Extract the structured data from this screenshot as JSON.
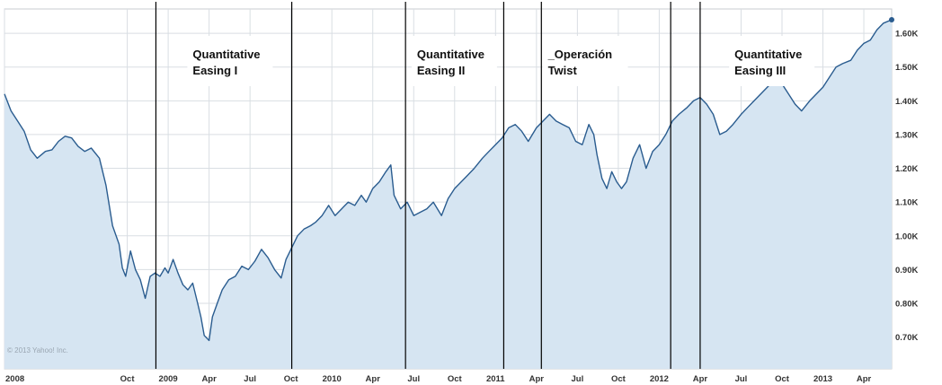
{
  "chart_data": {
    "type": "area",
    "y_ticks": [
      "0.70K",
      "0.80K",
      "0.90K",
      "1.00K",
      "1.10K",
      "1.20K",
      "1.30K",
      "1.40K",
      "1.50K",
      "1.60K"
    ],
    "y_tick_values": [
      700,
      800,
      900,
      1000,
      1100,
      1200,
      1300,
      1400,
      1500,
      1600
    ],
    "ylim": [
      606,
      1672
    ],
    "x_range": [
      2008.0,
      2013.42
    ],
    "x_ticks": [
      {
        "label": "2008",
        "t": 2008.0
      },
      {
        "label": "Oct",
        "t": 2008.75
      },
      {
        "label": "2009",
        "t": 2009.0
      },
      {
        "label": "Apr",
        "t": 2009.25
      },
      {
        "label": "Jul",
        "t": 2009.5
      },
      {
        "label": "Oct",
        "t": 2009.75
      },
      {
        "label": "2010",
        "t": 2010.0
      },
      {
        "label": "Apr",
        "t": 2010.25
      },
      {
        "label": "Jul",
        "t": 2010.5
      },
      {
        "label": "Oct",
        "t": 2010.75
      },
      {
        "label": "2011",
        "t": 2011.0
      },
      {
        "label": "Apr",
        "t": 2011.25
      },
      {
        "label": "Jul",
        "t": 2011.5
      },
      {
        "label": "Oct",
        "t": 2011.75
      },
      {
        "label": "2012",
        "t": 2012.0
      },
      {
        "label": "Apr",
        "t": 2012.25
      },
      {
        "label": "Jul",
        "t": 2012.5
      },
      {
        "label": "Oct",
        "t": 2012.75
      },
      {
        "label": "2013",
        "t": 2013.0
      },
      {
        "label": "Apr",
        "t": 2013.25
      }
    ],
    "series": [
      {
        "values": [
          [
            2008.0,
            1420
          ],
          [
            2008.04,
            1370
          ],
          [
            2008.08,
            1340
          ],
          [
            2008.12,
            1310
          ],
          [
            2008.16,
            1255
          ],
          [
            2008.2,
            1230
          ],
          [
            2008.25,
            1250
          ],
          [
            2008.29,
            1255
          ],
          [
            2008.33,
            1280
          ],
          [
            2008.37,
            1295
          ],
          [
            2008.41,
            1290
          ],
          [
            2008.45,
            1265
          ],
          [
            2008.49,
            1250
          ],
          [
            2008.53,
            1260
          ],
          [
            2008.58,
            1230
          ],
          [
            2008.62,
            1150
          ],
          [
            2008.66,
            1030
          ],
          [
            2008.7,
            975
          ],
          [
            2008.72,
            905
          ],
          [
            2008.74,
            880
          ],
          [
            2008.77,
            955
          ],
          [
            2008.8,
            900
          ],
          [
            2008.83,
            870
          ],
          [
            2008.86,
            815
          ],
          [
            2008.89,
            880
          ],
          [
            2008.92,
            890
          ],
          [
            2008.95,
            880
          ],
          [
            2008.98,
            905
          ],
          [
            2009.0,
            890
          ],
          [
            2009.03,
            930
          ],
          [
            2009.06,
            890
          ],
          [
            2009.09,
            855
          ],
          [
            2009.12,
            840
          ],
          [
            2009.15,
            860
          ],
          [
            2009.18,
            800
          ],
          [
            2009.2,
            760
          ],
          [
            2009.22,
            705
          ],
          [
            2009.25,
            690
          ],
          [
            2009.27,
            760
          ],
          [
            2009.3,
            800
          ],
          [
            2009.33,
            840
          ],
          [
            2009.37,
            870
          ],
          [
            2009.41,
            880
          ],
          [
            2009.45,
            910
          ],
          [
            2009.49,
            900
          ],
          [
            2009.53,
            925
          ],
          [
            2009.57,
            960
          ],
          [
            2009.61,
            935
          ],
          [
            2009.65,
            900
          ],
          [
            2009.69,
            875
          ],
          [
            2009.72,
            930
          ],
          [
            2009.75,
            960
          ],
          [
            2009.79,
            1000
          ],
          [
            2009.83,
            1020
          ],
          [
            2009.87,
            1030
          ],
          [
            2009.9,
            1040
          ],
          [
            2009.94,
            1060
          ],
          [
            2009.98,
            1090
          ],
          [
            2010.02,
            1060
          ],
          [
            2010.06,
            1080
          ],
          [
            2010.1,
            1100
          ],
          [
            2010.14,
            1090
          ],
          [
            2010.18,
            1120
          ],
          [
            2010.21,
            1100
          ],
          [
            2010.25,
            1140
          ],
          [
            2010.29,
            1160
          ],
          [
            2010.33,
            1190
          ],
          [
            2010.36,
            1210
          ],
          [
            2010.38,
            1120
          ],
          [
            2010.42,
            1080
          ],
          [
            2010.46,
            1100
          ],
          [
            2010.5,
            1060
          ],
          [
            2010.54,
            1070
          ],
          [
            2010.58,
            1080
          ],
          [
            2010.62,
            1100
          ],
          [
            2010.67,
            1060
          ],
          [
            2010.71,
            1110
          ],
          [
            2010.75,
            1140
          ],
          [
            2010.79,
            1160
          ],
          [
            2010.83,
            1180
          ],
          [
            2010.87,
            1200
          ],
          [
            2010.92,
            1230
          ],
          [
            2010.96,
            1250
          ],
          [
            2011.0,
            1270
          ],
          [
            2011.04,
            1290
          ],
          [
            2011.08,
            1320
          ],
          [
            2011.12,
            1330
          ],
          [
            2011.16,
            1310
          ],
          [
            2011.2,
            1280
          ],
          [
            2011.25,
            1320
          ],
          [
            2011.29,
            1340
          ],
          [
            2011.33,
            1360
          ],
          [
            2011.37,
            1340
          ],
          [
            2011.41,
            1330
          ],
          [
            2011.45,
            1320
          ],
          [
            2011.49,
            1280
          ],
          [
            2011.53,
            1270
          ],
          [
            2011.57,
            1330
          ],
          [
            2011.6,
            1300
          ],
          [
            2011.62,
            1240
          ],
          [
            2011.65,
            1170
          ],
          [
            2011.68,
            1140
          ],
          [
            2011.71,
            1190
          ],
          [
            2011.74,
            1160
          ],
          [
            2011.77,
            1140
          ],
          [
            2011.8,
            1160
          ],
          [
            2011.84,
            1230
          ],
          [
            2011.88,
            1270
          ],
          [
            2011.92,
            1200
          ],
          [
            2011.96,
            1250
          ],
          [
            2012.0,
            1270
          ],
          [
            2012.04,
            1300
          ],
          [
            2012.08,
            1340
          ],
          [
            2012.12,
            1360
          ],
          [
            2012.17,
            1380
          ],
          [
            2012.21,
            1400
          ],
          [
            2012.25,
            1410
          ],
          [
            2012.29,
            1390
          ],
          [
            2012.33,
            1360
          ],
          [
            2012.37,
            1300
          ],
          [
            2012.41,
            1310
          ],
          [
            2012.45,
            1330
          ],
          [
            2012.5,
            1360
          ],
          [
            2012.54,
            1380
          ],
          [
            2012.58,
            1400
          ],
          [
            2012.62,
            1420
          ],
          [
            2012.66,
            1440
          ],
          [
            2012.7,
            1460
          ],
          [
            2012.75,
            1450
          ],
          [
            2012.79,
            1420
          ],
          [
            2012.83,
            1390
          ],
          [
            2012.87,
            1370
          ],
          [
            2012.92,
            1400
          ],
          [
            2012.96,
            1420
          ],
          [
            2013.0,
            1440
          ],
          [
            2013.04,
            1470
          ],
          [
            2013.08,
            1500
          ],
          [
            2013.12,
            1510
          ],
          [
            2013.17,
            1520
          ],
          [
            2013.21,
            1550
          ],
          [
            2013.25,
            1570
          ],
          [
            2013.29,
            1580
          ],
          [
            2013.33,
            1610
          ],
          [
            2013.37,
            1630
          ],
          [
            2013.42,
            1640
          ]
        ]
      }
    ],
    "events": [
      {
        "t": 2008.925
      },
      {
        "t": 2009.755
      },
      {
        "t": 2010.45
      },
      {
        "t": 2011.05
      },
      {
        "t": 2011.28
      },
      {
        "t": 2012.07
      },
      {
        "t": 2012.25
      }
    ],
    "annotations": [
      {
        "lines": [
          "Quantitative",
          "Easing I"
        ],
        "t": 2009.15
      },
      {
        "lines": [
          "Quantitative",
          "Easing II"
        ],
        "t": 2010.52
      },
      {
        "lines": [
          "_Operación",
          "Twist"
        ],
        "t": 2011.32
      },
      {
        "lines": [
          "Quantitative",
          "Easing III"
        ],
        "t": 2012.46
      }
    ],
    "credit": "© 2013 Yahoo! Inc."
  },
  "style": {
    "line_color": "#2a5c8f",
    "fill_color": "#d6e5f2",
    "grid_color": "#d9dee3",
    "event_line_color": "#000000"
  }
}
